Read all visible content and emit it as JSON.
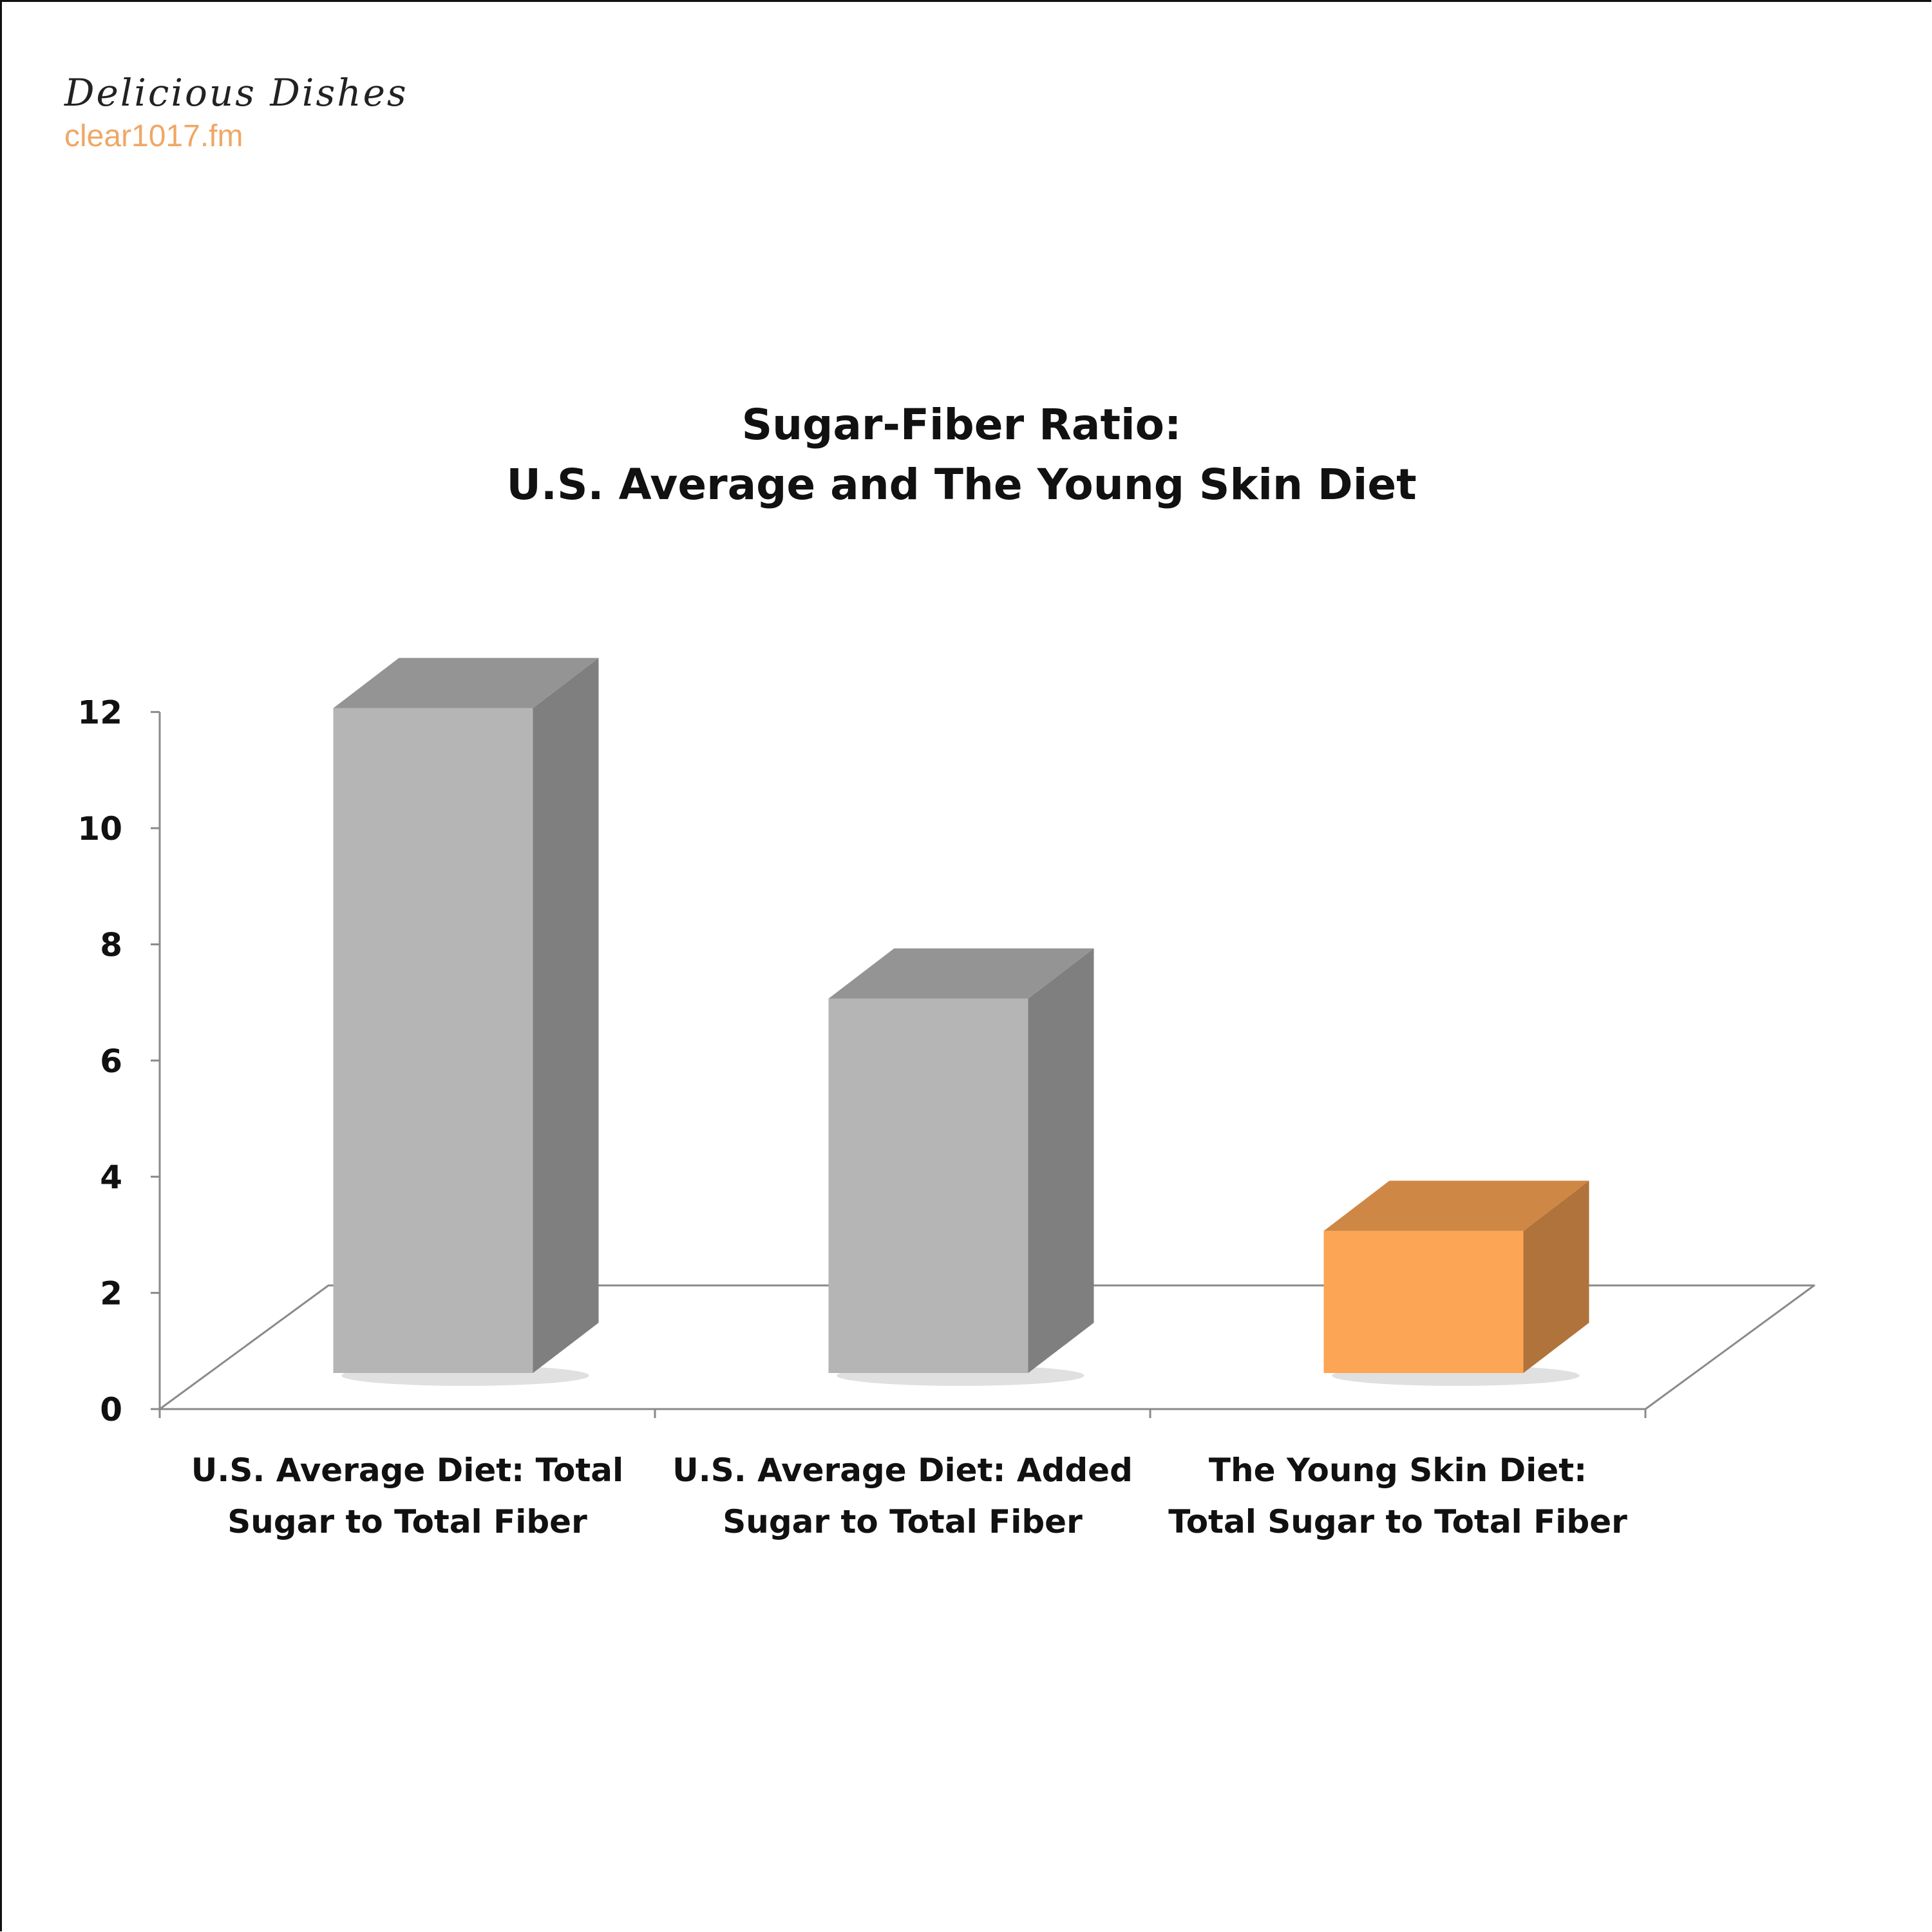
{
  "brand": {
    "name": "Delicious Dishes",
    "url": "clear1017.fm"
  },
  "chart_data": {
    "type": "bar",
    "title": [
      "Sugar-Fiber Ratio:",
      "U.S. Average and The Young Skin Diet"
    ],
    "categories": [
      [
        "U.S. Average Diet: Total",
        "Sugar to Total Fiber"
      ],
      [
        "U.S. Average Diet: Added",
        "Sugar to Total Fiber"
      ],
      [
        "The Young Skin Diet:",
        "Total Sugar to Total Fiber"
      ]
    ],
    "values": [
      12,
      7,
      3
    ],
    "bar_colors": [
      "#b5b5b5",
      "#b5b5b5",
      "#fca554"
    ],
    "ylim": [
      0,
      12
    ],
    "yticks": [
      "0",
      "2",
      "4",
      "6",
      "8",
      "10",
      "12"
    ],
    "grid": false,
    "legend": "none",
    "style": "3d-column"
  }
}
